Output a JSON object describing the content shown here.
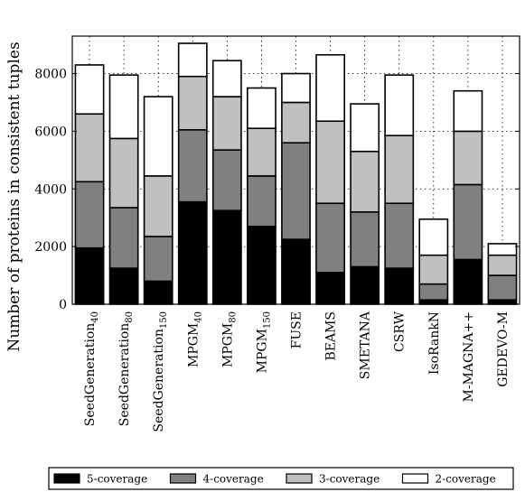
{
  "chart_data": {
    "type": "bar",
    "stacked": true,
    "title": "",
    "xlabel": "",
    "ylabel": "Number of proteins in consistent tuples",
    "ylim": [
      0,
      9300
    ],
    "yticks": [
      0,
      2000,
      4000,
      6000,
      8000
    ],
    "grid": true,
    "legend_position": "bottom",
    "categories": [
      {
        "label": "SeedGeneration",
        "subscript": "40"
      },
      {
        "label": "SeedGeneration",
        "subscript": "80"
      },
      {
        "label": "SeedGeneration",
        "subscript": "150"
      },
      {
        "label": "MPGM",
        "subscript": "40"
      },
      {
        "label": "MPGM",
        "subscript": "80"
      },
      {
        "label": "MPGM",
        "subscript": "150"
      },
      {
        "label": "FUSE",
        "subscript": ""
      },
      {
        "label": "BEAMS",
        "subscript": ""
      },
      {
        "label": "SMETANA",
        "subscript": ""
      },
      {
        "label": "CSRW",
        "subscript": ""
      },
      {
        "label": "IsoRankN",
        "subscript": ""
      },
      {
        "label": "M-MAGNA++",
        "subscript": ""
      },
      {
        "label": "GEDEVO-M",
        "subscript": ""
      }
    ],
    "series": [
      {
        "name": "5-coverage",
        "color": "#000000",
        "values": [
          1950,
          1250,
          800,
          3550,
          3250,
          2700,
          2250,
          1100,
          1300,
          1250,
          150,
          1550,
          150
        ]
      },
      {
        "name": "4-coverage",
        "color": "#808080",
        "values": [
          2300,
          2100,
          1550,
          2500,
          2100,
          1750,
          3350,
          2400,
          1900,
          2250,
          550,
          2600,
          850
        ]
      },
      {
        "name": "3-coverage",
        "color": "#c0c0c0",
        "values": [
          2350,
          2400,
          2100,
          1850,
          1850,
          1650,
          1400,
          2850,
          2100,
          2350,
          1000,
          1850,
          700
        ]
      },
      {
        "name": "2-coverage",
        "color": "#ffffff",
        "values": [
          1700,
          2200,
          2750,
          1150,
          1250,
          1400,
          1000,
          2300,
          1650,
          2100,
          1250,
          1400,
          400
        ]
      }
    ]
  }
}
